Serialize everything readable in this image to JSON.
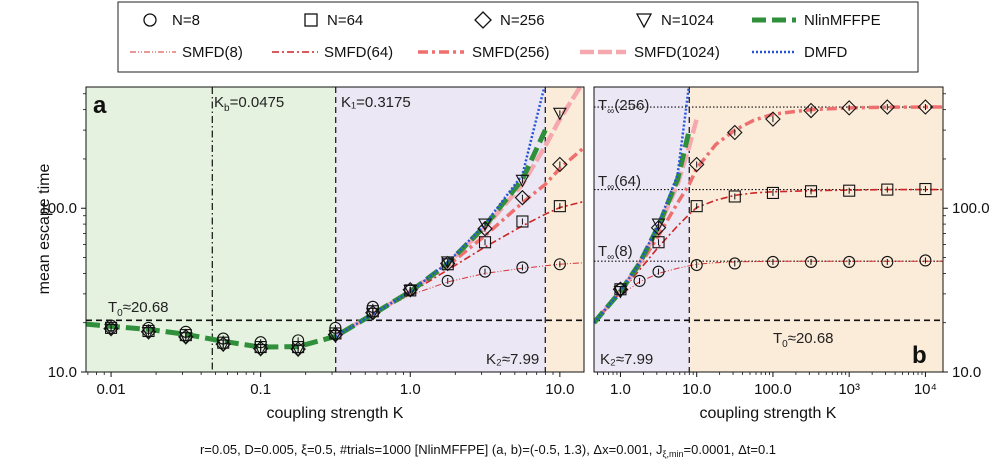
{
  "colors": {
    "green": "#2f8f3a",
    "shade_green": "#e5f2df",
    "shade_lavender": "#ebe7f4",
    "shade_orange": "#fbebd9",
    "smfd_8": "#d63333",
    "smfd_64": "#cc2525",
    "smfd_256": "#ef6f6f",
    "smfd_1024": "#f5a8ae",
    "dmfd": "#2455d8"
  },
  "legend": {
    "row1": [
      "N=8",
      "N=64",
      "N=256",
      "N=1024",
      "NlinMFFPE"
    ],
    "row2": [
      "SMFD(8)",
      "SMFD(64)",
      "SMFD(256)",
      "SMFD(1024)",
      "DMFD"
    ]
  },
  "chart_data": [
    {
      "panel": "a",
      "type": "line",
      "xscale": "log",
      "yscale": "log",
      "xlim": [
        0.0068,
        14.5
      ],
      "ylim": [
        10,
        550
      ],
      "xlabel": "coupling strength K",
      "ylabel": "mean escape time",
      "xticks": [
        0.01,
        0.1,
        1.0,
        10.0
      ],
      "xtick_labels": [
        "0.01",
        "0.1",
        "1.0",
        "10.0"
      ],
      "yticks": [
        10,
        100
      ],
      "ytick_labels": [
        "10.0",
        "100.0"
      ],
      "regions": [
        {
          "from": 0.0068,
          "to": 0.0475,
          "color": "green"
        },
        {
          "from": 0.0475,
          "to": 0.3175,
          "color": "green"
        },
        {
          "from": 0.3175,
          "to": 7.99,
          "color": "lavender"
        },
        {
          "from": 7.99,
          "to": 14.5,
          "color": "orange"
        }
      ],
      "vlines": [
        {
          "x": 0.0475,
          "style": "dashdot",
          "label": "K_b=0.0475"
        },
        {
          "x": 0.3175,
          "style": "dashed",
          "label": "K₁=0.3175"
        },
        {
          "x": 7.99,
          "style": "dashed",
          "label": "K₂≈7.99"
        }
      ],
      "hlines": [
        {
          "y": 20.68,
          "style": "dashed",
          "label": "T_0≈20.68"
        }
      ],
      "markers": {
        "x": [
          0.01,
          0.0178,
          0.0316,
          0.0562,
          0.1,
          0.178,
          0.316,
          0.562,
          1.0,
          1.78,
          3.16,
          5.62,
          10.0
        ],
        "N=8": [
          19.2,
          18.6,
          17.6,
          16.0,
          15.2,
          15.6,
          18.6,
          25.0,
          31.5,
          36.0,
          41.0,
          43.5,
          45.5
        ],
        "N=64": [
          18.6,
          17.8,
          16.8,
          15.1,
          14.2,
          14.2,
          17.2,
          23.5,
          31.5,
          45.5,
          62,
          83,
          103
        ],
        "N=256": [
          18.4,
          17.6,
          16.4,
          14.8,
          13.9,
          13.8,
          16.9,
          23.0,
          31.8,
          46.0,
          75,
          116,
          185
        ],
        "N=1024": [
          18.2,
          17.4,
          16.2,
          14.6,
          13.7,
          13.6,
          16.7,
          22.8,
          31.5,
          47.0,
          80,
          148,
          380
        ]
      },
      "curves": {
        "K": [
          0.0068,
          0.01,
          0.0178,
          0.0316,
          0.0562,
          0.1,
          0.178,
          0.316,
          0.562,
          1.0,
          1.78,
          3.16,
          5.62,
          7.99,
          10.0,
          14.5
        ],
        "NlinMFFPE": [
          19.6,
          19.0,
          18.2,
          17.0,
          15.4,
          14.2,
          14.3,
          16.5,
          22.5,
          31.0,
          46.0,
          78.0,
          150.0,
          300.0,
          null,
          null
        ],
        "SMFD(8)": [
          null,
          null,
          null,
          null,
          null,
          null,
          null,
          16.5,
          22.5,
          29.5,
          35.5,
          40.0,
          43.0,
          44.5,
          45.5,
          46.5
        ],
        "SMFD(64)": [
          null,
          null,
          null,
          null,
          null,
          null,
          null,
          16.5,
          22.5,
          30.5,
          42.0,
          58.0,
          78.0,
          92.0,
          101.0,
          110.0
        ],
        "SMFD(256)": [
          null,
          null,
          null,
          null,
          null,
          null,
          null,
          16.5,
          22.5,
          31.0,
          44.5,
          68.0,
          108.0,
          140.0,
          175.0,
          235.0
        ],
        "SMFD(1024)": [
          null,
          null,
          null,
          null,
          null,
          null,
          null,
          16.5,
          22.5,
          31.0,
          46.0,
          76.0,
          140.0,
          240.0,
          350.0,
          600.0
        ],
        "DMFD": [
          null,
          null,
          null,
          null,
          null,
          null,
          null,
          16.5,
          22.5,
          31.0,
          46.5,
          80.0,
          160.0,
          580.0,
          null,
          null
        ]
      }
    },
    {
      "panel": "b",
      "type": "line",
      "xscale": "log",
      "yscale": "log",
      "xlim": [
        0.45,
        17000
      ],
      "ylim": [
        10,
        550
      ],
      "xlabel": "coupling strength K",
      "xticks": [
        1,
        10,
        100,
        1000,
        10000
      ],
      "xtick_labels": [
        "1.0",
        "10.0",
        "100.0",
        "10³",
        "10⁴"
      ],
      "yticks": [
        10,
        100
      ],
      "ytick_labels": [
        "10.0",
        "100.0"
      ],
      "regions": [
        {
          "from": 0.45,
          "to": 7.99,
          "color": "lavender"
        },
        {
          "from": 7.99,
          "to": 17000,
          "color": "orange"
        }
      ],
      "vlines": [
        {
          "x": 7.99,
          "style": "dashed",
          "label": "K₂≈7.99"
        }
      ],
      "hlines": [
        {
          "y": 20.68,
          "style": "dashed",
          "label": "T_0≈20.68"
        },
        {
          "y": 47.5,
          "style": "dotted",
          "label": "T_∞(8)"
        },
        {
          "y": 130,
          "style": "dotted",
          "label": "T_∞(64)"
        },
        {
          "y": 415,
          "style": "dotted",
          "label": "T_∞(256)"
        }
      ],
      "markers": {
        "x": [
          1.0,
          1.78,
          3.16,
          5.62,
          10.0,
          17.8,
          31.6,
          56.2,
          100,
          316,
          1000,
          3162,
          10000
        ],
        "N=8": [
          32,
          36,
          41,
          null,
          45,
          null,
          46,
          null,
          47,
          47,
          47,
          47,
          48
        ],
        "N=64": [
          32,
          null,
          62,
          null,
          103,
          null,
          118,
          null,
          124,
          127,
          128,
          130,
          131
        ],
        "N=256": [
          32,
          null,
          76,
          null,
          185,
          null,
          290,
          null,
          350,
          395,
          410,
          415,
          415
        ],
        "N=1024": [
          31,
          null,
          80,
          null,
          null,
          null,
          null,
          null,
          null,
          null,
          null,
          null,
          null
        ]
      },
      "curves": {
        "K": [
          0.45,
          1.0,
          1.78,
          3.16,
          5.62,
          7.99,
          10.0,
          17.8,
          31.6,
          56.2,
          100,
          316,
          1000,
          3162,
          10000,
          17000
        ],
        "NlinMFFPE": [
          20.0,
          31.0,
          46.0,
          78.0,
          150.0,
          300.0,
          null,
          null,
          null,
          null,
          null,
          null,
          null,
          null,
          null,
          null
        ],
        "SMFD(8)": [
          20.0,
          29.5,
          35.5,
          40.0,
          43.0,
          44.5,
          45.5,
          46.5,
          47.0,
          47.2,
          47.4,
          47.5,
          47.5,
          47.5,
          47.5,
          47.5
        ],
        "SMFD(64)": [
          20.0,
          30.5,
          42.0,
          58.0,
          78.0,
          92.0,
          101.0,
          112.0,
          120.0,
          124.0,
          126.0,
          128.0,
          129.0,
          130.0,
          130.0,
          130.0
        ],
        "SMFD(256)": [
          20.0,
          31.0,
          44.5,
          68.0,
          108.0,
          140.0,
          175.0,
          245.0,
          300.0,
          345.0,
          375.0,
          400.0,
          410.0,
          414.0,
          415.0,
          415.0
        ],
        "SMFD(1024)": [
          20.0,
          31.0,
          46.0,
          76.0,
          140.0,
          240.0,
          350.0,
          null,
          null,
          null,
          null,
          null,
          null,
          null,
          null,
          null
        ],
        "DMFD": [
          20.0,
          31.0,
          46.5,
          80.0,
          160.0,
          580.0,
          null,
          null,
          null,
          null,
          null,
          null,
          null,
          null,
          null,
          null
        ]
      }
    }
  ],
  "annotations": {
    "panel_a": "a",
    "panel_b": "b",
    "kb": "K",
    "kb_sub": "b",
    "kb_val": "=0.0475",
    "k1": "K₁=0.3175",
    "k2": "K₂≈7.99",
    "t0_main": "T",
    "t0_sub": "0",
    "t0_val": "≈20.68",
    "tinf_main": "T",
    "tinf_sub": "∞",
    "tinf_8": "(8)",
    "tinf_64": "(64)",
    "tinf_256": "(256)"
  },
  "footer": {
    "p1": "r=0.05, D=0.005, ξ=0.5, #trials=1000   [NlinMFFPE] (a, b)=(-0.5, 1.3), Δx=0.001, J",
    "p1_sub": "ξ,min",
    "p2": "=0.0001, Δt=0.1"
  }
}
